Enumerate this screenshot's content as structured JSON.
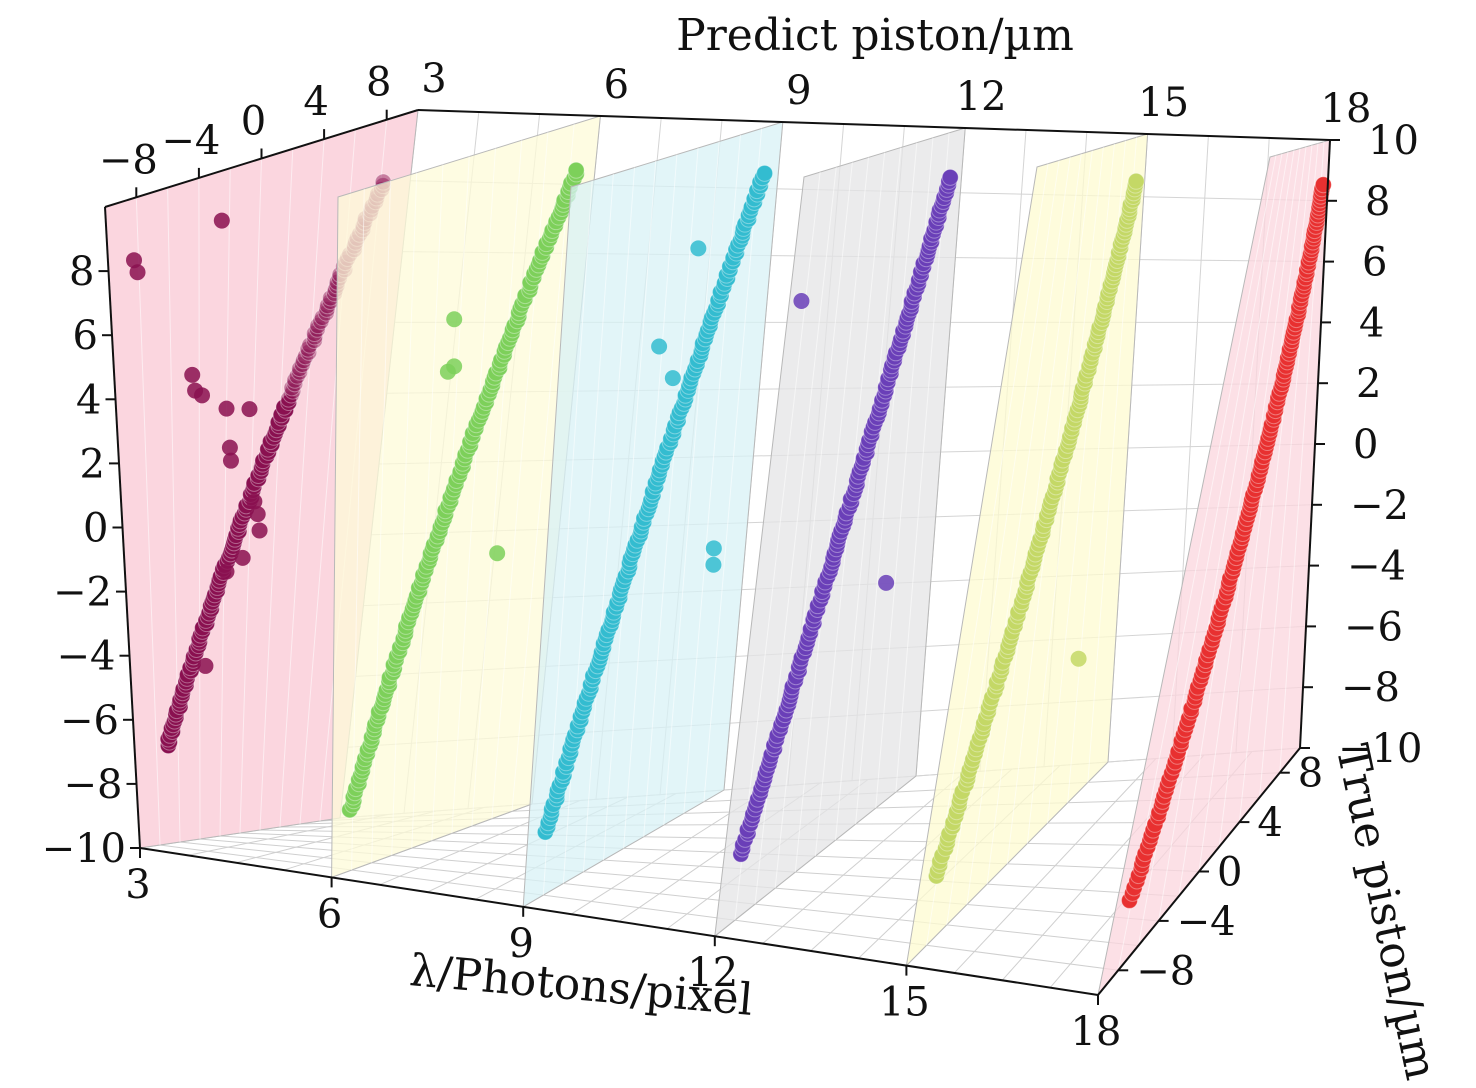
{
  "chart_data": {
    "type": "scatter",
    "dimension": "3d",
    "title": "",
    "x_axis": {
      "label": "Predict piston/µm",
      "ticks": [
        -8,
        -4,
        0,
        4,
        8
      ],
      "range": [
        -10,
        10
      ]
    },
    "depth_axis": {
      "label": "λ/Photons/pixel",
      "ticks": [
        3,
        6,
        9,
        12,
        15,
        18
      ],
      "range": [
        3,
        18
      ]
    },
    "depth_axis_top_ticks": [
      3,
      6,
      9,
      12,
      15,
      18
    ],
    "z_axis_left": {
      "label": "",
      "ticks": [
        -10,
        -8,
        -6,
        -4,
        -2,
        0,
        2,
        4,
        6,
        8
      ],
      "range": [
        -10,
        10
      ]
    },
    "z_axis_right": {
      "label": "",
      "ticks": [
        -10,
        -8,
        -6,
        -4,
        -2,
        0,
        2,
        4,
        6,
        8,
        10
      ],
      "range": [
        -10,
        10
      ]
    },
    "y_axis": {
      "label": "True piston/µm",
      "ticks": [
        -8,
        -4,
        0,
        4,
        8
      ],
      "range": [
        -10,
        10
      ]
    },
    "grid": true,
    "series": [
      {
        "lambda": 3,
        "plane_color": "#f9c8d4",
        "point_color": "#8a1050",
        "dense_range": [
          -7,
          2.5
        ],
        "faint_range": [
          2.5,
          8.2
        ],
        "outliers": [
          [
            -8.3,
            8.1
          ],
          [
            -8.1,
            7.7
          ],
          [
            -2.5,
            8.5
          ],
          [
            -4.5,
            4.1
          ],
          [
            -4.3,
            3.6
          ],
          [
            -3.8,
            3.4
          ],
          [
            -2.0,
            2.8
          ],
          [
            -1.7,
            1.6
          ],
          [
            -1.6,
            1.2
          ],
          [
            -0.3,
            2.6
          ],
          [
            -0.5,
            -1.8
          ],
          [
            -3.5,
            -4.8
          ],
          [
            0.3,
            -0.2
          ],
          [
            0.6,
            -0.6
          ],
          [
            0.8,
            -1.1
          ],
          [
            -1.8,
            -2.1
          ]
        ]
      },
      {
        "lambda": 6,
        "plane_color": "#fdfbd8",
        "point_color": "#7dd05a",
        "outliers": [
          [
            -0.5,
            5.3
          ],
          [
            -0.8,
            3.8
          ],
          [
            -0.3,
            3.9
          ],
          [
            4.5,
            -2.1
          ]
        ]
      },
      {
        "lambda": 9,
        "plane_color": "#d8f2f6",
        "point_color": "#33bcd0",
        "outliers": [
          [
            2.8,
            7.0
          ],
          [
            -0.3,
            4.5
          ],
          [
            1.3,
            3.4
          ],
          [
            6.8,
            -2.3
          ],
          [
            6.9,
            -2.8
          ]
        ]
      },
      {
        "lambda": 12,
        "plane_color": "#e4e4e6",
        "point_color": "#6a3fb8",
        "outliers": [
          [
            -8.5,
            6.6
          ],
          [
            5.0,
            -3.1
          ]
        ]
      },
      {
        "lambda": 15,
        "plane_color": "#fdfbd0",
        "point_color": "#c4d866",
        "outliers": [
          [
            5.8,
            -5.6
          ]
        ]
      },
      {
        "lambda": 18,
        "plane_color": "#fbd6de",
        "point_color": "#e83030",
        "outliers": []
      }
    ]
  }
}
